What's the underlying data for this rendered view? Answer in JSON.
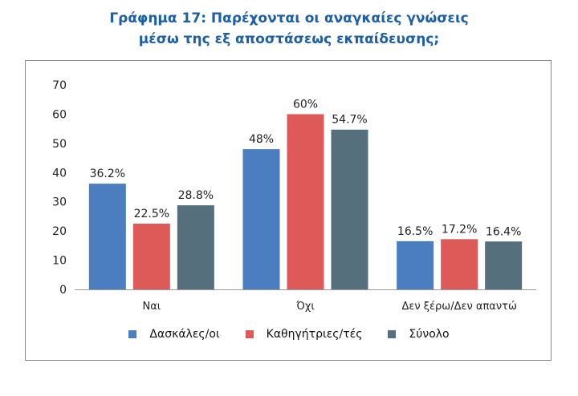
{
  "title_line1": "Γράφημα 17: Παρέχονται οι αναγκαίες γνώσεις",
  "title_line2": "μέσω της εξ αποστάσεως εκπαίδευσης;",
  "chart_data": {
    "type": "bar",
    "categories": [
      "Ναι",
      "Όχι",
      "Δεν ξέρω/Δεν απαντώ"
    ],
    "series": [
      {
        "name": "Δασκάλες/οι",
        "color": "#4a7ec0",
        "values": [
          36.2,
          48,
          16.5
        ],
        "labels": [
          "36.2%",
          "48%",
          "16.5%"
        ]
      },
      {
        "name": "Καθηγήτριες/τές",
        "color": "#dd5a59",
        "values": [
          22.5,
          60,
          17.2
        ],
        "labels": [
          "22.5%",
          "60%",
          "17.2%"
        ]
      },
      {
        "name": "Σύνολο",
        "color": "#566f7d",
        "values": [
          28.8,
          54.7,
          16.4
        ],
        "labels": [
          "28.8%",
          "54.7%",
          "16.4%"
        ]
      }
    ],
    "ylim": [
      0,
      70
    ],
    "yticks": [
      "0",
      "10",
      "20",
      "30",
      "40",
      "50",
      "60",
      "70"
    ],
    "grid": false,
    "legend_position": "bottom"
  }
}
